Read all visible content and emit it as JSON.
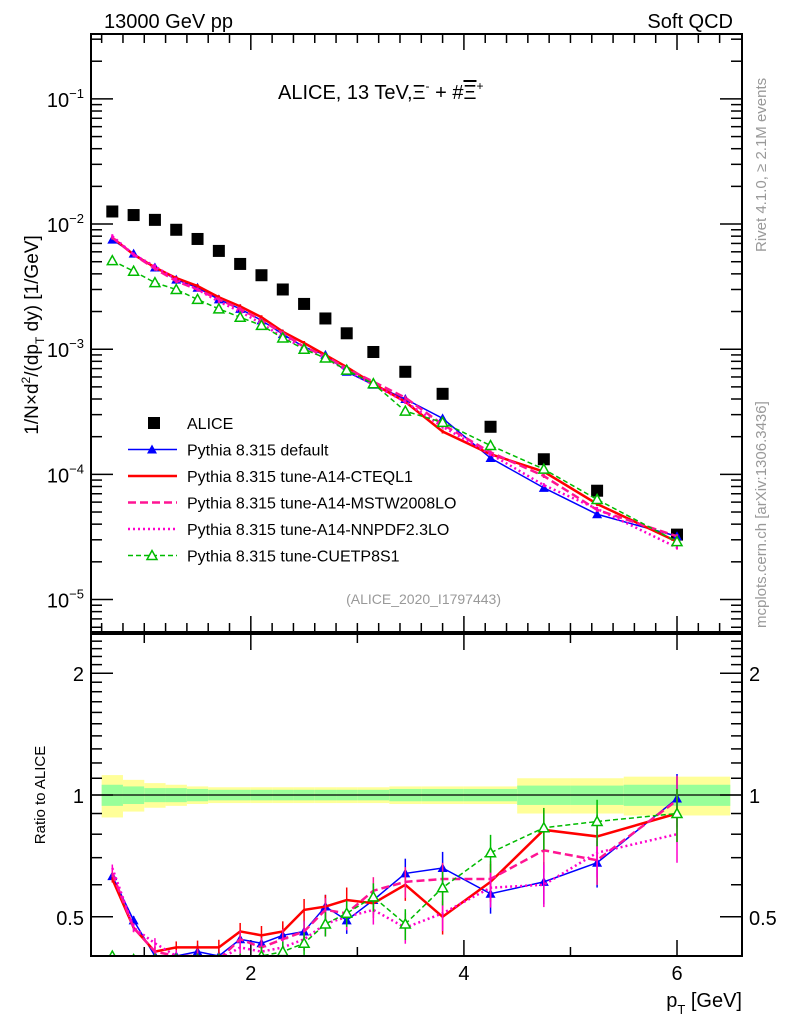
{
  "header": {
    "left": "13000 GeV pp",
    "right": "Soft QCD"
  },
  "side_labels": {
    "top": "Rivet 4.1.0, ≥ 2.1M events",
    "bottom": "mcplots.cern.ch [arXiv:1306.3436]"
  },
  "chart_data": [
    {
      "type": "line",
      "panel": "main",
      "title": "ALICE, 13 TeV,Ξ⁻ + #Ξ̅⁺",
      "title_parts": {
        "prefix": "ALICE, 13 TeV,",
        "xi_minus": "Ξ",
        "minus": "-",
        "plus_sign": " + #",
        "xi_bar": "Ξ",
        "plus": "+"
      },
      "xlabel": "p_T [GeV]",
      "ylabel": "1/N × d²/(dp_T dy) [1/GeV]",
      "ylabel_parts": {
        "a": "1/N",
        "times": "×",
        "b": "d",
        "sup2": "2",
        "c": "/(dp",
        "sub": "T",
        "d": " dy) [1/GeV]"
      },
      "yscale": "log",
      "xlim": [
        0.5,
        6.61
      ],
      "ylim": [
        5.5e-06,
        0.33
      ],
      "yticks": [
        {
          "v": 0.1,
          "exp": "-1"
        },
        {
          "v": 0.01,
          "exp": "-2"
        },
        {
          "v": 0.001,
          "exp": "-3"
        },
        {
          "v": 0.0001,
          "exp": "-4"
        },
        {
          "v": 1e-05,
          "exp": "-5"
        }
      ],
      "tick_base": "10",
      "analysis_id": "(ALICE_2020_I1797443)",
      "legend_position": "bottom-left",
      "x": [
        0.7,
        0.9,
        1.1,
        1.3,
        1.5,
        1.7,
        1.9,
        2.1,
        2.3,
        2.5,
        2.7,
        2.9,
        3.15,
        3.45,
        3.8,
        4.25,
        4.75,
        5.25,
        6.0
      ],
      "series": [
        {
          "name": "ALICE",
          "color": "#000000",
          "style": "marker-square",
          "values": [
            0.0126,
            0.0118,
            0.0108,
            0.009,
            0.0076,
            0.0061,
            0.0048,
            0.0039,
            0.003,
            0.0023,
            0.00176,
            0.00134,
            0.00095,
            0.00066,
            0.00044,
            0.00024,
            0.000132,
            7.4e-05,
            3.3e-05
          ]
        },
        {
          "name": "Pythia 8.315 default",
          "color": "#0000ff",
          "style": "solid-thin-triangle",
          "values": [
            0.0075,
            0.0058,
            0.0045,
            0.0036,
            0.0031,
            0.0025,
            0.0021,
            0.0017,
            0.00132,
            0.00104,
            0.0009,
            0.00066,
            0.00052,
            0.0004,
            0.00028,
            0.000135,
            7.8e-05,
            4.8e-05,
            3.2e-05
          ]
        },
        {
          "name": "Pythia 8.315 tune-A14-CTEQL1",
          "color": "#ff0000",
          "style": "solid-thick",
          "values": [
            0.0078,
            0.0057,
            0.0045,
            0.0037,
            0.0032,
            0.0026,
            0.0022,
            0.0018,
            0.00138,
            0.00112,
            0.0009,
            0.00072,
            0.00053,
            0.00038,
            0.00022,
            0.000145,
            0.000105,
            5.8e-05,
            2.9e-05
          ]
        },
        {
          "name": "Pythia 8.315 tune-A14-MSTW2008LO",
          "color": "#ff1493",
          "style": "dashed",
          "values": [
            0.0078,
            0.0057,
            0.0044,
            0.0035,
            0.003,
            0.0025,
            0.0021,
            0.0017,
            0.00135,
            0.00104,
            0.00088,
            0.0007,
            0.00055,
            0.00041,
            0.00025,
            0.00015,
            9.7e-05,
            5.2e-05,
            3.2e-05
          ]
        },
        {
          "name": "Pythia 8.315 tune-A14-NNPDF2.3LO",
          "color": "#ff00cc",
          "style": "dotted",
          "values": [
            0.008,
            0.0057,
            0.0046,
            0.0036,
            0.003,
            0.0024,
            0.002,
            0.0016,
            0.00125,
            0.00102,
            0.00085,
            0.00068,
            0.00052,
            0.00038,
            0.00024,
            0.000145,
            8.2e-05,
            5.3e-05,
            2.6e-05
          ]
        },
        {
          "name": "Pythia 8.315 tune-CUETP8S1",
          "color": "#00bb00",
          "style": "dashed-open-triangle",
          "values": [
            0.0051,
            0.0042,
            0.0034,
            0.003,
            0.0025,
            0.0021,
            0.0018,
            0.00155,
            0.00123,
            0.001,
            0.00085,
            0.00068,
            0.00053,
            0.00032,
            0.00026,
            0.00017,
            0.00011,
            6.3e-05,
            2.9e-05
          ]
        }
      ]
    },
    {
      "type": "line",
      "panel": "ratio",
      "ylabel": "Ratio to ALICE",
      "xlabel": "p_T [GeV]",
      "xlabel_parts": {
        "p": "p",
        "sub": "T",
        "rest": " [GeV]"
      },
      "yscale": "log",
      "xlim": [
        0.5,
        6.61
      ],
      "ylim": [
        0.4,
        2.5
      ],
      "yticks": [
        {
          "v": 2,
          "label": "2"
        },
        {
          "v": 1,
          "label": "1"
        },
        {
          "v": 0.5,
          "label": "0.5"
        }
      ],
      "xticks": [
        {
          "v": 2,
          "label": "2"
        },
        {
          "v": 4,
          "label": "4"
        },
        {
          "v": 6,
          "label": "6"
        }
      ],
      "band_edges": [
        0.6,
        0.8,
        1.0,
        1.2,
        1.4,
        1.6,
        1.8,
        2.0,
        2.2,
        2.4,
        2.6,
        2.8,
        3.0,
        3.3,
        3.6,
        4.0,
        4.5,
        5.0,
        5.5,
        6.5
      ],
      "band_stat": [
        0.06,
        0.05,
        0.04,
        0.04,
        0.035,
        0.03,
        0.03,
        0.03,
        0.03,
        0.03,
        0.03,
        0.03,
        0.03,
        0.035,
        0.035,
        0.035,
        0.055,
        0.055,
        0.06
      ],
      "band_total": [
        0.12,
        0.09,
        0.07,
        0.06,
        0.05,
        0.045,
        0.045,
        0.045,
        0.045,
        0.045,
        0.045,
        0.045,
        0.045,
        0.05,
        0.05,
        0.05,
        0.1,
        0.1,
        0.11
      ],
      "band_colors": {
        "total": "#ffff99",
        "stat": "#99ff99"
      },
      "x": [
        0.7,
        0.9,
        1.1,
        1.3,
        1.5,
        1.7,
        1.9,
        2.1,
        2.3,
        2.5,
        2.7,
        2.9,
        3.15,
        3.45,
        3.8,
        4.25,
        4.75,
        5.25,
        6.0
      ],
      "series": [
        {
          "name": "Pythia 8.315 default",
          "color": "#0000ff",
          "values": [
            0.63,
            0.49,
            0.4,
            0.4,
            0.41,
            0.4,
            0.44,
            0.43,
            0.45,
            0.46,
            0.53,
            0.49,
            0.55,
            0.64,
            0.66,
            0.57,
            0.61,
            0.68,
            0.98
          ]
        },
        {
          "name": "Pythia 8.315 tune-A14-CTEQL1",
          "color": "#ff0000",
          "values": [
            0.62,
            0.47,
            0.41,
            0.42,
            0.42,
            0.42,
            0.46,
            0.45,
            0.46,
            0.52,
            0.53,
            0.55,
            0.54,
            0.6,
            0.5,
            0.61,
            0.82,
            0.79,
            0.9
          ]
        },
        {
          "name": "Pythia 8.315 tune-A14-MSTW2008LO",
          "color": "#ff1493",
          "values": [
            0.64,
            0.47,
            0.41,
            0.4,
            0.4,
            0.39,
            0.44,
            0.42,
            0.44,
            0.46,
            0.52,
            0.51,
            0.58,
            0.61,
            0.62,
            0.62,
            0.73,
            0.69,
            0.97
          ]
        },
        {
          "name": "Pythia 8.315 tune-A14-NNPDF2.3LO",
          "color": "#ff00cc",
          "values": [
            0.66,
            0.47,
            0.43,
            0.4,
            0.39,
            0.38,
            0.42,
            0.41,
            0.42,
            0.44,
            0.48,
            0.5,
            0.52,
            0.47,
            0.51,
            0.59,
            0.6,
            0.72,
            0.8
          ]
        },
        {
          "name": "Pythia 8.315 tune-CUETP8S1",
          "color": "#00bb00",
          "values": [
            0.4,
            0.36,
            0.32,
            0.33,
            0.33,
            0.34,
            0.37,
            0.4,
            0.41,
            0.43,
            0.48,
            0.51,
            0.56,
            0.48,
            0.59,
            0.72,
            0.83,
            0.86,
            0.9
          ]
        }
      ]
    }
  ]
}
